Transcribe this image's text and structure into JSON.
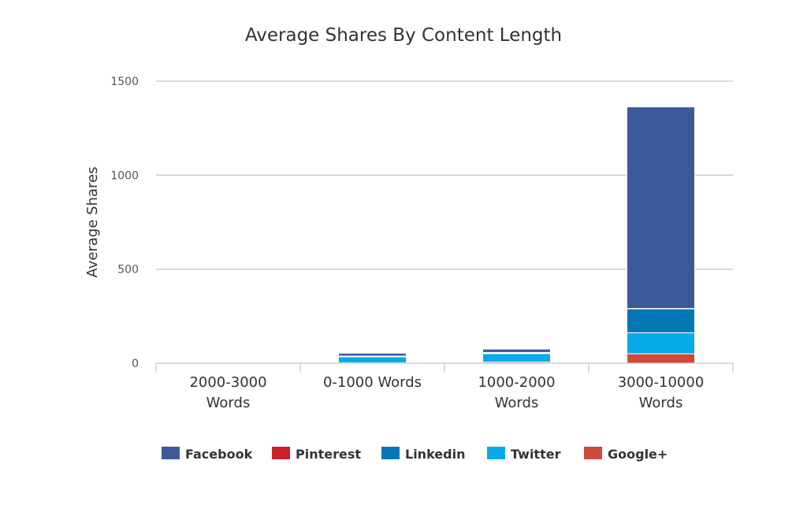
{
  "chart_data": {
    "type": "bar",
    "stacked": true,
    "title": "Average Shares By Content Length",
    "xlabel": "",
    "ylabel": "Average Shares",
    "ylim": [
      0,
      1500
    ],
    "yticks": [
      0,
      500,
      1000,
      1500
    ],
    "grid": true,
    "legend_position": "bottom",
    "categories": [
      [
        "2000-3000",
        "Words"
      ],
      [
        "0-1000 Words"
      ],
      [
        "1000-2000",
        "Words"
      ],
      [
        "3000-10000",
        "Words"
      ]
    ],
    "series": [
      {
        "name": "Google+",
        "color": "#d04a3a",
        "values": [
          0,
          2,
          6,
          50
        ]
      },
      {
        "name": "Twitter",
        "color": "#07abe9",
        "values": [
          0,
          32,
          45,
          112
        ]
      },
      {
        "name": "Linkedin",
        "color": "#0277b5",
        "values": [
          0,
          3,
          4,
          128
        ]
      },
      {
        "name": "Pinterest",
        "color": "#cb2127",
        "values": [
          0,
          1,
          2,
          1
        ]
      },
      {
        "name": "Facebook",
        "color": "#3b5998",
        "values": [
          0,
          15,
          18,
          1072
        ]
      }
    ],
    "legend_order": [
      "Facebook",
      "Pinterest",
      "Linkedin",
      "Twitter",
      "Google+"
    ]
  }
}
